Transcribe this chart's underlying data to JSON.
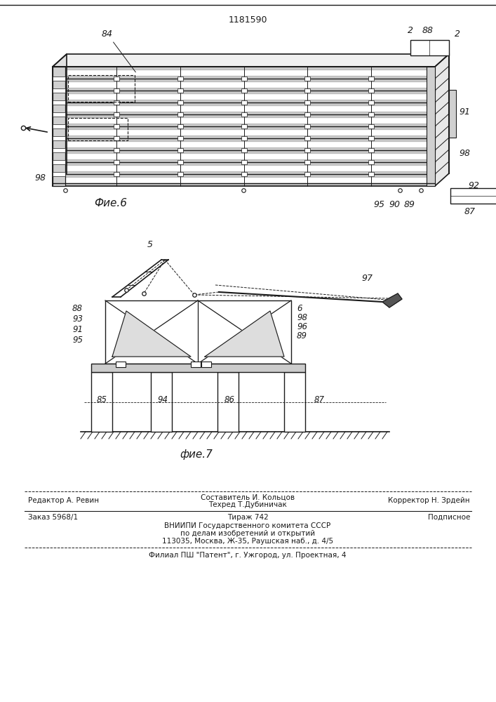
{
  "patent_number": "1181590",
  "fig6_label": "Фие.6",
  "fig7_label": "фие.7",
  "bg_color": "#ffffff",
  "line_color": "#1a1a1a",
  "footer_line1_left": "Редактор А. Ревин",
  "footer_line1_center_top": "Составитель И. Кольцов",
  "footer_line1_center_bot": "Техред Т.Дубиничак",
  "footer_line1_right": "Корректор Н. Зрдейн",
  "footer_line2_col1": "Заказ 5968/1",
  "footer_line2_col2": "Тираж 742",
  "footer_line2_col3": "Подписное",
  "footer_line3a": "ВНИИПИ Государственного комитета СССР",
  "footer_line3b": "по делам изобретений и открытий",
  "footer_line3c": "113035, Москва, Ж-35, Раушская наб., д. 4/5",
  "footer_line4": "Филиал ПШ \"Патент\", г. Ужгород, ул. Проектная, 4"
}
